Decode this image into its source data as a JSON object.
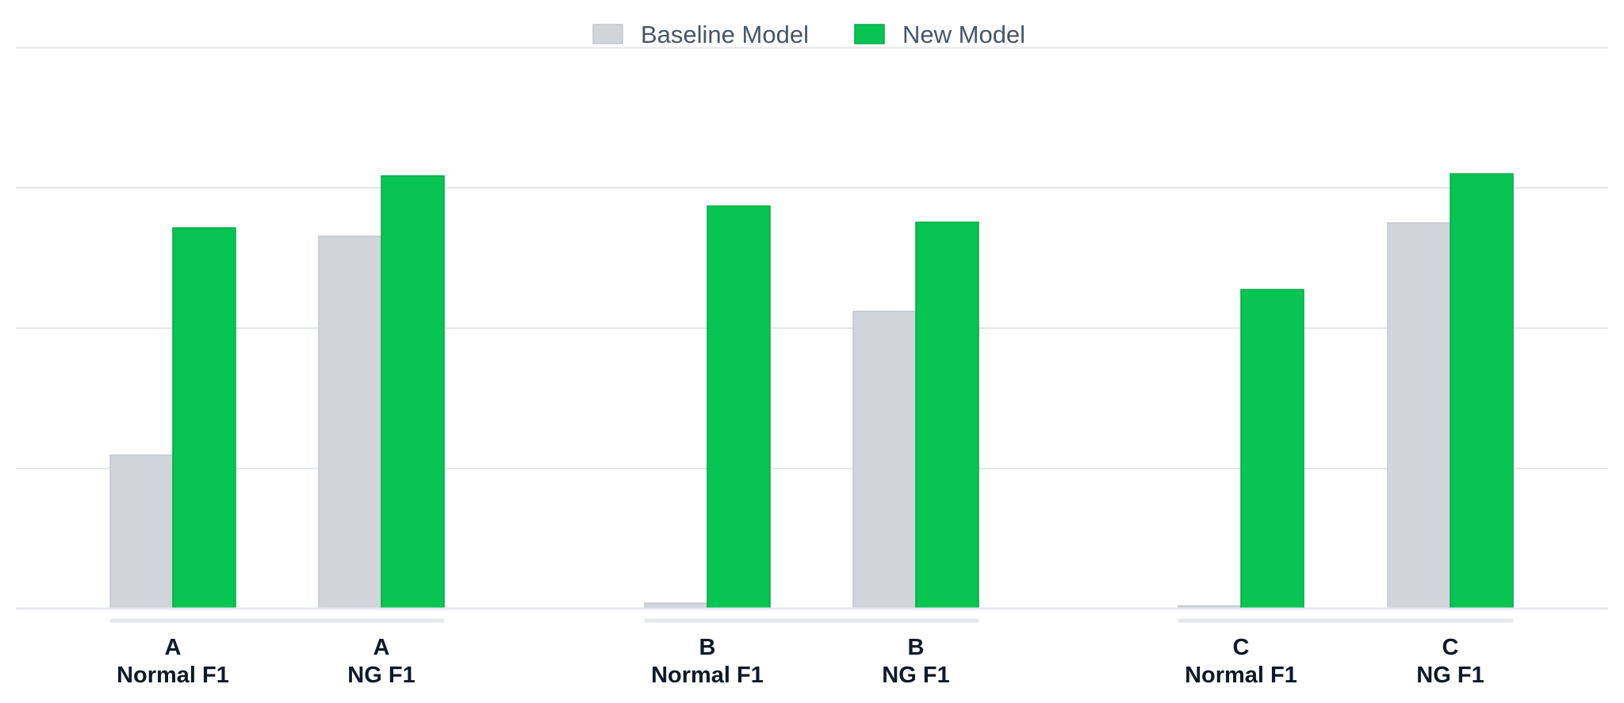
{
  "chart_data": {
    "type": "bar",
    "categories": [
      [
        "A",
        "Normal F1"
      ],
      [
        "A",
        "NG F1"
      ],
      [
        "B",
        "Normal F1"
      ],
      [
        "B",
        "NG F1"
      ],
      [
        "C",
        "Normal F1"
      ],
      [
        "C",
        "NG F1"
      ]
    ],
    "groups": [
      "A",
      "B",
      "C"
    ],
    "series": [
      {
        "name": "Baseline Model",
        "color": "#d1d5db",
        "values": [
          0.219,
          0.531,
          0.008,
          0.424,
          0.004,
          0.55
        ]
      },
      {
        "name": "New Model",
        "color": "#06c553",
        "values": [
          0.543,
          0.617,
          0.574,
          0.551,
          0.455,
          0.62
        ]
      }
    ],
    "ylim": [
      0,
      0.8
    ],
    "yticks": [
      0,
      0.2,
      0.4,
      0.6,
      0.8
    ],
    "grid": true,
    "legend_position": "top-center",
    "title": "",
    "xlabel": "",
    "ylabel": ""
  }
}
